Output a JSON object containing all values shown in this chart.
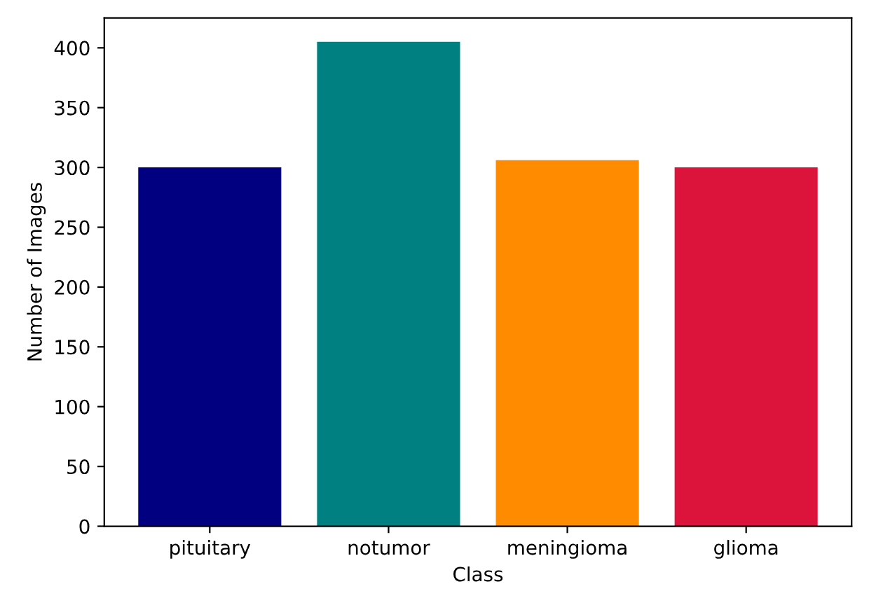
{
  "chart_data": {
    "type": "bar",
    "xlabel": "Class",
    "ylabel": "Number of Images",
    "categories": [
      "pituitary",
      "notumor",
      "meningioma",
      "glioma"
    ],
    "values": [
      300,
      405,
      306,
      300
    ],
    "colors": [
      "#000080",
      "#008080",
      "#ff8c00",
      "#dc143c"
    ],
    "ylim": [
      0,
      425
    ],
    "yticks": [
      0,
      50,
      100,
      150,
      200,
      250,
      300,
      350,
      400
    ],
    "grid": false
  }
}
